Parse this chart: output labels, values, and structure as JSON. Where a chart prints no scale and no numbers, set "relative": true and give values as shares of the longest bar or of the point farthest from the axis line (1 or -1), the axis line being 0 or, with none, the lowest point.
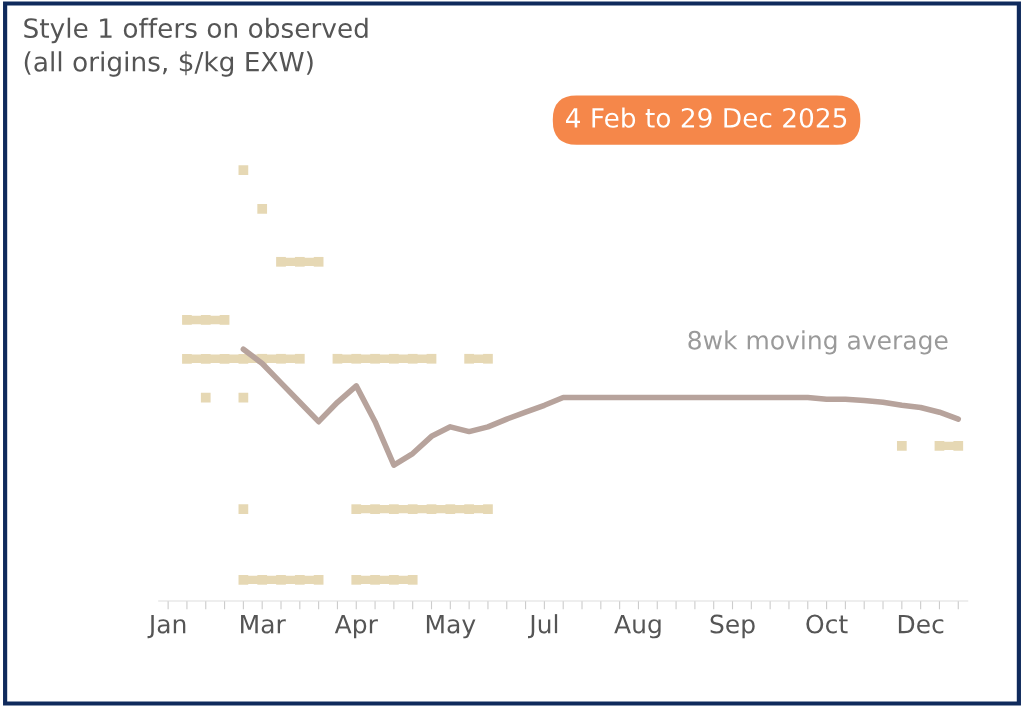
{
  "chart_data": {
    "type": "line",
    "title": "Style 1 offers on observed\n(all origins, $/kg EXW)",
    "subtitle": "4 Feb to 29 Dec 2025",
    "relative": true,
    "categories": [
      "Jan",
      null,
      null,
      null,
      null,
      "Mar",
      null,
      null,
      null,
      null,
      "Apr",
      null,
      null,
      null,
      null,
      "May",
      null,
      null,
      null,
      null,
      "Jul",
      null,
      null,
      null,
      null,
      "Aug",
      null,
      null,
      null,
      null,
      "Sep",
      null,
      null,
      null,
      null,
      "Oct",
      null,
      null,
      null,
      null,
      "Dec",
      null,
      null
    ],
    "series": [
      {
        "color": "#e6d8b4",
        "marker": "square",
        "values": [
          null,
          null,
          null,
          null,
          1.0,
          null,
          null,
          null,
          null,
          null,
          null,
          null,
          null,
          null,
          null,
          null,
          null,
          null,
          null,
          null,
          null,
          null,
          null,
          null,
          null,
          null,
          null,
          null,
          null,
          null,
          null,
          null,
          null,
          null,
          null,
          null,
          null,
          null,
          null,
          null,
          null,
          null,
          null
        ]
      },
      {
        "color": "#e6d8b4",
        "marker": "square",
        "values": [
          null,
          null,
          null,
          null,
          null,
          0.91,
          null,
          null,
          null,
          null,
          null,
          null,
          null,
          null,
          null,
          null,
          null,
          null,
          null,
          null,
          null,
          null,
          null,
          null,
          null,
          null,
          null,
          null,
          null,
          null,
          null,
          null,
          null,
          null,
          null,
          null,
          null,
          null,
          null,
          null,
          null,
          null,
          null
        ]
      },
      {
        "color": "#e6d8b4",
        "marker": "square",
        "values": [
          null,
          null,
          null,
          null,
          null,
          null,
          0.787,
          0.787,
          0.787,
          null,
          null,
          null,
          null,
          null,
          null,
          null,
          null,
          null,
          null,
          null,
          null,
          null,
          null,
          null,
          null,
          null,
          null,
          null,
          null,
          null,
          null,
          null,
          null,
          null,
          null,
          null,
          null,
          null,
          null,
          null,
          null,
          null,
          null
        ]
      },
      {
        "color": "#e6d8b4",
        "marker": "square",
        "values": [
          null,
          0.652,
          0.652,
          0.652,
          null,
          null,
          null,
          null,
          null,
          null,
          null,
          null,
          null,
          null,
          null,
          null,
          null,
          null,
          null,
          null,
          null,
          null,
          null,
          null,
          null,
          null,
          null,
          null,
          null,
          null,
          null,
          null,
          null,
          null,
          null,
          null,
          null,
          null,
          null,
          null,
          null,
          null,
          null
        ]
      },
      {
        "color": "#e6d8b4",
        "marker": "square",
        "values": [
          null,
          0.562,
          0.562,
          0.562,
          0.562,
          0.562,
          0.562,
          0.562,
          null,
          0.562,
          0.562,
          0.562,
          0.562,
          0.562,
          0.562,
          null,
          0.562,
          0.562,
          null,
          null,
          null,
          null,
          null,
          null,
          null,
          null,
          null,
          null,
          null,
          null,
          null,
          null,
          null,
          null,
          null,
          null,
          null,
          null,
          null,
          null,
          null,
          null,
          null
        ]
      },
      {
        "color": "#e6d8b4",
        "marker": "square",
        "values": [
          null,
          null,
          0.472,
          null,
          0.472,
          null,
          null,
          null,
          null,
          null,
          null,
          null,
          null,
          null,
          null,
          null,
          null,
          null,
          null,
          null,
          null,
          null,
          null,
          null,
          null,
          null,
          null,
          null,
          null,
          null,
          null,
          null,
          null,
          null,
          null,
          null,
          null,
          null,
          null,
          0.36,
          null,
          0.36,
          0.36
        ]
      },
      {
        "color": "#e6d8b4",
        "marker": "square",
        "values": [
          null,
          null,
          null,
          null,
          0.213,
          null,
          null,
          null,
          null,
          null,
          0.213,
          0.213,
          0.213,
          0.213,
          0.213,
          0.213,
          0.213,
          0.213,
          null,
          null,
          null,
          null,
          null,
          null,
          null,
          null,
          null,
          null,
          null,
          null,
          null,
          null,
          null,
          null,
          null,
          null,
          null,
          null,
          null,
          null,
          null,
          null,
          null
        ]
      },
      {
        "color": "#e6d8b4",
        "marker": "square",
        "values": [
          null,
          null,
          null,
          null,
          0.049,
          0.049,
          0.049,
          0.049,
          0.049,
          null,
          0.049,
          0.049,
          0.049,
          0.049,
          null,
          null,
          null,
          null,
          null,
          null,
          null,
          null,
          null,
          null,
          null,
          null,
          null,
          null,
          null,
          null,
          null,
          null,
          null,
          null,
          null,
          null,
          null,
          null,
          null,
          null,
          null,
          null,
          null
        ]
      },
      {
        "name": "8wk moving average",
        "color": "#b7a39c",
        "values": [
          null,
          null,
          null,
          null,
          0.584,
          0.551,
          0.506,
          0.461,
          0.416,
          0.461,
          0.499,
          0.416,
          0.315,
          0.342,
          0.382,
          0.404,
          0.393,
          0.404,
          0.422,
          0.438,
          0.454,
          0.472,
          0.472,
          0.472,
          0.472,
          0.472,
          0.472,
          0.472,
          0.472,
          0.472,
          0.472,
          0.472,
          0.472,
          0.472,
          0.472,
          0.468,
          0.468,
          0.465,
          0.461,
          0.454,
          0.449,
          0.438,
          0.422
        ]
      }
    ]
  }
}
